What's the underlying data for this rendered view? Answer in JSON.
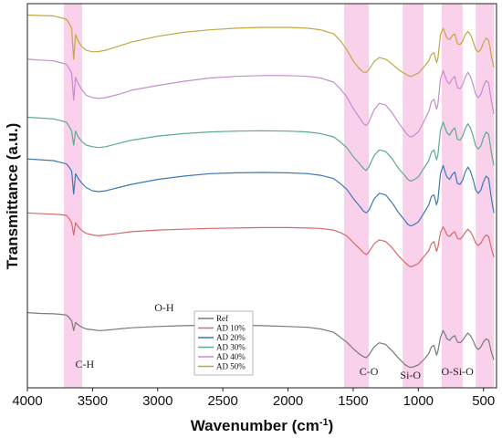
{
  "chart_data": {
    "type": "line",
    "xlabel": "Wavenumber (cm",
    "xlabel_sup": "-1",
    "xlabel_tail": ")",
    "ylabel": "Transmittance (a.u.)",
    "xlim": [
      4000,
      400
    ],
    "x_reversed": true,
    "x_ticks": [
      4000,
      3500,
      3000,
      2500,
      2000,
      1500,
      1000,
      500
    ],
    "highlight_color": "#f9c9e6",
    "highlight_bands": [
      {
        "label": "C-H",
        "from": 3720,
        "to": 3580
      },
      {
        "label": "C-O",
        "from": 1570,
        "to": 1380
      },
      {
        "label": "Si-O",
        "from": 1120,
        "to": 960
      },
      {
        "label": "O-Si-O",
        "from": 820,
        "to": 660
      },
      {
        "label": "",
        "from": 560,
        "to": 420
      }
    ],
    "annotations": [
      {
        "text": "O-H",
        "x": 2950
      },
      {
        "text": "C-H",
        "x": 3560
      },
      {
        "text": "C-O",
        "x": 1380
      },
      {
        "text": "Si-O",
        "x": 1060
      },
      {
        "text": "O-Si-O",
        "x": 700
      }
    ],
    "legend": {
      "placement": "bottom-center"
    },
    "x": [
      4000,
      3900,
      3800,
      3750,
      3700,
      3680,
      3660,
      3645,
      3630,
      3610,
      3580,
      3550,
      3500,
      3450,
      3400,
      3300,
      3200,
      3000,
      2800,
      2600,
      2400,
      2200,
      2000,
      1850,
      1750,
      1650,
      1600,
      1550,
      1500,
      1450,
      1420,
      1400,
      1380,
      1340,
      1300,
      1250,
      1200,
      1150,
      1100,
      1080,
      1060,
      1040,
      1000,
      960,
      920,
      900,
      880,
      860,
      850,
      830,
      810,
      790,
      780,
      760,
      740,
      720,
      700,
      680,
      660,
      640,
      620,
      600,
      580,
      560,
      540,
      520,
      500,
      480,
      460,
      440,
      420
    ],
    "series": [
      {
        "name": "Ref",
        "color": "#7a7a7a",
        "values": [
          92,
          91,
          90.5,
          90,
          89,
          86,
          82,
          70,
          80,
          77,
          74,
          72,
          71,
          70,
          70.5,
          72,
          73.5,
          75,
          76,
          76.5,
          76.5,
          76,
          75,
          74,
          72,
          68,
          62,
          56,
          48,
          41,
          38,
          37,
          40,
          50,
          55,
          53,
          45,
          36,
          28,
          26,
          25,
          25.5,
          28,
          34,
          42,
          50,
          52,
          40,
          45,
          62,
          70,
          64,
          60,
          58,
          62,
          64,
          56,
          55,
          58,
          63,
          67,
          64,
          58,
          50,
          47,
          50,
          56,
          60,
          58,
          44,
          34
        ]
      },
      {
        "name": "AD 10%",
        "color": "#d9686a",
        "values": [
          214,
          213,
          212.5,
          212,
          211,
          207,
          202,
          187,
          202,
          197,
          192,
          189,
          187,
          186,
          187,
          189,
          191,
          193,
          194,
          195,
          195.5,
          196,
          196,
          195.5,
          195,
          193,
          190,
          186,
          178,
          170,
          165,
          163,
          166,
          176,
          181,
          179,
          171,
          161,
          153,
          150,
          148,
          149,
          152,
          160,
          168,
          176,
          179,
          167,
          172,
          190,
          197,
          191,
          187,
          185,
          189,
          191,
          183,
          182,
          185,
          190,
          194,
          191,
          185,
          177,
          174,
          177,
          183,
          187,
          185,
          171,
          160
        ]
      },
      {
        "name": "AD 20%",
        "color": "#3a79b6",
        "values": [
          280,
          279,
          278,
          276,
          274,
          270,
          265,
          237,
          262,
          256,
          250,
          245,
          241,
          240,
          241,
          245,
          249,
          255,
          259,
          262,
          263,
          263.5,
          263,
          262,
          260,
          256,
          250,
          243,
          232,
          222,
          216,
          214,
          217,
          231,
          238,
          236,
          226,
          214,
          204,
          200,
          198,
          199,
          203,
          213,
          224,
          234,
          236,
          224,
          230,
          262,
          272,
          262,
          258,
          255,
          261,
          264,
          250,
          249,
          254,
          264,
          270,
          265,
          255,
          242,
          238,
          242,
          252,
          259,
          256,
          232,
          214
        ]
      },
      {
        "name": "AD 30%",
        "color": "#5bab8d",
        "values": [
          331,
          330,
          329,
          327,
          325,
          320,
          314,
          297,
          314,
          307,
          301,
          297,
          295,
          294,
          295,
          299,
          303,
          308,
          311,
          313,
          314,
          314.5,
          314,
          313,
          311,
          307,
          301,
          294,
          283,
          274,
          268,
          266,
          270,
          284,
          291,
          289,
          280,
          268,
          259,
          255,
          253,
          254,
          258,
          268,
          278,
          288,
          291,
          279,
          285,
          315,
          325,
          316,
          312,
          309,
          315,
          318,
          304,
          303,
          308,
          317,
          323,
          318,
          308,
          296,
          292,
          296,
          306,
          313,
          310,
          288,
          272
        ]
      },
      {
        "name": "AD 40%",
        "color": "#c88cd0",
        "values": [
          402,
          401,
          400,
          398,
          396,
          391,
          385,
          352,
          380,
          372,
          364,
          358,
          355,
          354,
          355,
          359,
          364,
          370,
          375,
          379,
          381,
          382,
          382,
          381,
          379,
          374,
          366,
          356,
          342,
          330,
          323,
          321,
          325,
          340,
          348,
          346,
          336,
          324,
          313,
          309,
          307,
          308,
          313,
          325,
          338,
          350,
          353,
          341,
          347,
          378,
          388,
          379,
          375,
          372,
          378,
          381,
          367,
          366,
          371,
          380,
          386,
          381,
          371,
          359,
          355,
          359,
          369,
          376,
          373,
          351,
          335
        ]
      },
      {
        "name": "AD 50%",
        "color": "#c4a645",
        "values": [
          456,
          455.5,
          455,
          453,
          451,
          446,
          440,
          402,
          432,
          424,
          417,
          413,
          411,
          411.5,
          413,
          418,
          423,
          430,
          435,
          438,
          440,
          441,
          441,
          440,
          438,
          433,
          425,
          414,
          400,
          390,
          386,
          386,
          389,
          399,
          404,
          402,
          396,
          389,
          384,
          382,
          381,
          382,
          385,
          392,
          400,
          408,
          410,
          398,
          403,
          432,
          440,
          432,
          428,
          426,
          431,
          433,
          421,
          420,
          424,
          432,
          436,
          432,
          424,
          414,
          411,
          414,
          422,
          428,
          425,
          406,
          392
        ]
      }
    ]
  }
}
